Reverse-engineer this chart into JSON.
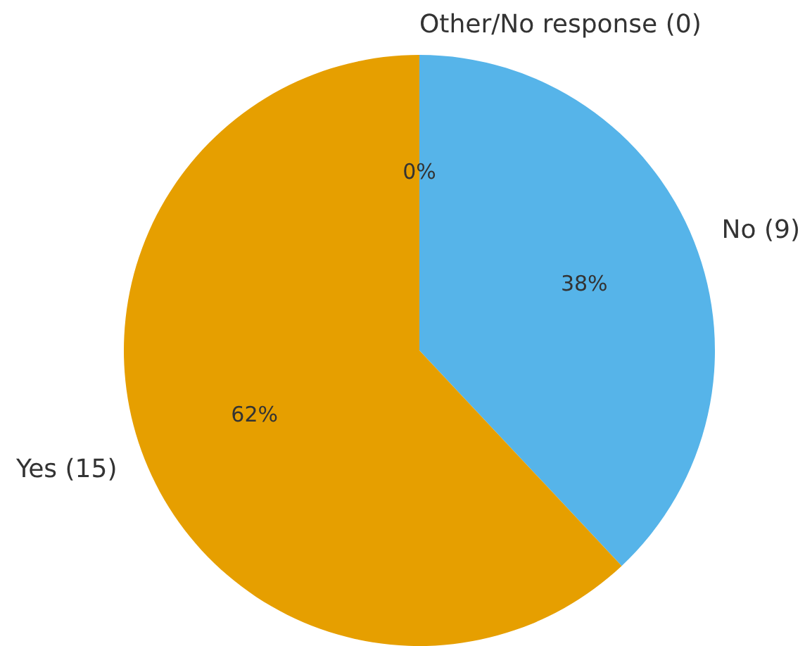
{
  "chart_data": {
    "type": "pie",
    "categories": [
      "Other/No response (0)",
      "No (9)",
      "Yes (15)"
    ],
    "values": [
      0,
      38,
      62
    ],
    "colors": [
      "#009e73",
      "#56b4e9",
      "#e69f00"
    ],
    "value_labels": [
      "0%",
      "38%",
      "62%"
    ]
  }
}
